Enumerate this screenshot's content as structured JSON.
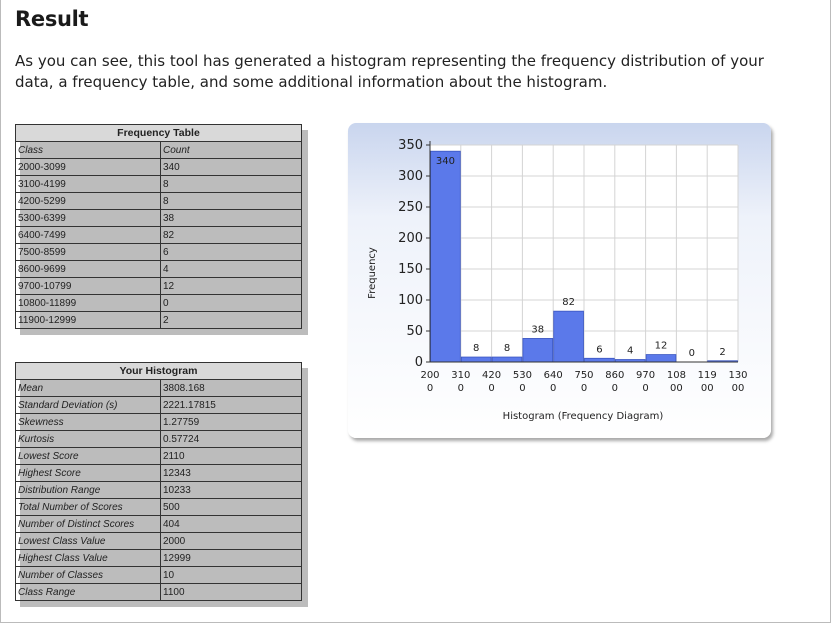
{
  "heading": "Result",
  "intro": "As you can see, this tool has generated a histogram representing the frequency distribution of your data, a frequency table, and some additional information about the histogram.",
  "freq_table": {
    "title": "Frequency Table",
    "col1": "Class",
    "col2": "Count",
    "rows": [
      {
        "cls": "2000-3099",
        "count": "340"
      },
      {
        "cls": "3100-4199",
        "count": "8"
      },
      {
        "cls": "4200-5299",
        "count": "8"
      },
      {
        "cls": "5300-6399",
        "count": "38"
      },
      {
        "cls": "6400-7499",
        "count": "82"
      },
      {
        "cls": "7500-8599",
        "count": "6"
      },
      {
        "cls": "8600-9699",
        "count": "4"
      },
      {
        "cls": "9700-10799",
        "count": "12"
      },
      {
        "cls": "10800-11899",
        "count": "0"
      },
      {
        "cls": "11900-12999",
        "count": "2"
      }
    ]
  },
  "hist_info": {
    "title": "Your Histogram",
    "rows": [
      {
        "label": "Mean",
        "value": "3808.168"
      },
      {
        "label": "Standard Deviation (s)",
        "value": "2221.17815"
      },
      {
        "label": "Skewness",
        "value": "1.27759"
      },
      {
        "label": "Kurtosis",
        "value": "0.57724"
      },
      {
        "label": "Lowest Score",
        "value": "2110"
      },
      {
        "label": "Highest Score",
        "value": "12343"
      },
      {
        "label": "Distribution Range",
        "value": "10233"
      },
      {
        "label": "Total Number of Scores",
        "value": "500"
      },
      {
        "label": "Number of Distinct Scores",
        "value": "404"
      },
      {
        "label": "Lowest Class Value",
        "value": "2000"
      },
      {
        "label": "Highest Class Value",
        "value": "12999"
      },
      {
        "label": "Number of Classes",
        "value": "10"
      },
      {
        "label": "Class Range",
        "value": "1100"
      }
    ]
  },
  "chart_data": {
    "type": "bar",
    "title": "",
    "xlabel": "Histogram (Frequency Diagram)",
    "ylabel": "Frequency",
    "ylim": [
      0,
      350
    ],
    "yticks": [
      0,
      50,
      100,
      150,
      200,
      250,
      300,
      350
    ],
    "x_tick_labels": [
      [
        "200",
        "0"
      ],
      [
        "310",
        "0"
      ],
      [
        "420",
        "0"
      ],
      [
        "530",
        "0"
      ],
      [
        "640",
        "0"
      ],
      [
        "750",
        "0"
      ],
      [
        "860",
        "0"
      ],
      [
        "970",
        "0"
      ],
      [
        "108",
        "00"
      ],
      [
        "119",
        "00"
      ],
      [
        "130",
        "00"
      ]
    ],
    "values": [
      340,
      8,
      8,
      38,
      82,
      6,
      4,
      12,
      0,
      2
    ],
    "bar_color": "#5b79ea",
    "grid": true
  }
}
